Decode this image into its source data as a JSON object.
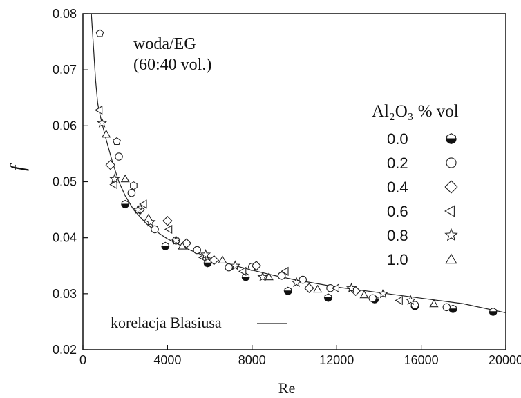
{
  "chart_data": {
    "type": "scatter",
    "xlabel": "Re",
    "ylabel": "f",
    "xlim": [
      0,
      20000
    ],
    "ylim": [
      0.02,
      0.08
    ],
    "x_ticks": [
      "0",
      "4000",
      "8000",
      "12000",
      "16000",
      "20000"
    ],
    "y_ticks": [
      "0.02",
      "0.03",
      "0.04",
      "0.05",
      "0.06",
      "0.07",
      "0.08"
    ],
    "grid": false,
    "annotation_lines": [
      "woda/EG",
      "(60:40 vol.)"
    ],
    "correlation_label": "korelacja Blasiusa",
    "legend_title": "Al₂O₃ % vol",
    "legend_placement": "right",
    "correlation_curve": {
      "name": "korelacja Blasiusa",
      "x": [
        400,
        500,
        600,
        700,
        750,
        900,
        1100,
        1400,
        1700,
        2000,
        2400,
        3000,
        3600,
        4000,
        5000,
        6000,
        7000,
        8000,
        9000,
        10000,
        12000,
        14000,
        16000,
        18000,
        20000
      ],
      "y": [
        0.08,
        0.074,
        0.068,
        0.064,
        0.063,
        0.0605,
        0.0575,
        0.0535,
        0.05,
        0.0475,
        0.045,
        0.0425,
        0.0408,
        0.0398,
        0.0379,
        0.0364,
        0.0352,
        0.0342,
        0.0333,
        0.0325,
        0.0312,
        0.0302,
        0.0292,
        0.0282,
        0.0266
      ]
    },
    "series": [
      {
        "name": "0.0",
        "marker": "pentagon-half",
        "x": [
          2000,
          3900,
          5900,
          7700,
          9700,
          11600,
          13800,
          15700,
          17500,
          19400
        ],
        "y": [
          0.046,
          0.0385,
          0.0355,
          0.033,
          0.0305,
          0.0293,
          0.029,
          0.0278,
          0.0273,
          0.0268
        ]
      },
      {
        "name": "0.2",
        "marker": "circle",
        "x": [
          1700,
          2300,
          3400,
          4400,
          5400,
          6900,
          8000,
          9400,
          10400,
          11700,
          13700,
          15700,
          17200
        ],
        "y": [
          0.0545,
          0.048,
          0.0415,
          0.0395,
          0.0378,
          0.0347,
          0.0348,
          0.0332,
          0.0325,
          0.031,
          0.0292,
          0.028,
          0.0276
        ]
      },
      {
        "name": "0.4",
        "marker": "diamond",
        "x": [
          1300,
          2700,
          4000,
          4900,
          6200,
          8200,
          10700,
          12900
        ],
        "y": [
          0.053,
          0.045,
          0.043,
          0.039,
          0.036,
          0.035,
          0.031,
          0.0305
        ]
      },
      {
        "name": "0.6",
        "marker": "triangle-left",
        "x": [
          800,
          1500,
          2900,
          4100,
          5700,
          7600,
          9600,
          12000,
          15000
        ],
        "y": [
          0.0628,
          0.0495,
          0.046,
          0.0415,
          0.0365,
          0.034,
          0.034,
          0.031,
          0.0288
        ]
      },
      {
        "name": "0.8",
        "marker": "star",
        "x": [
          900,
          1500,
          2600,
          3200,
          4400,
          5800,
          7200,
          8500,
          10100,
          12700,
          14200,
          15500
        ],
        "y": [
          0.0605,
          0.0505,
          0.045,
          0.0428,
          0.0395,
          0.037,
          0.035,
          0.033,
          0.032,
          0.031,
          0.03,
          0.0288
        ]
      },
      {
        "name": "1.0",
        "marker": "triangle-up",
        "x": [
          1100,
          2000,
          3100,
          4700,
          6600,
          8800,
          11100,
          13300,
          16600
        ],
        "y": [
          0.0585,
          0.0505,
          0.0435,
          0.0385,
          0.036,
          0.033,
          0.0308,
          0.0298,
          0.0282
        ]
      }
    ],
    "extra_points": [
      {
        "marker": "pentagon-open",
        "x": 800,
        "y": 0.0765
      },
      {
        "marker": "pentagon-open",
        "x": 1600,
        "y": 0.0572
      },
      {
        "marker": "hexagon-open",
        "x": 2400,
        "y": 0.0493
      }
    ]
  }
}
